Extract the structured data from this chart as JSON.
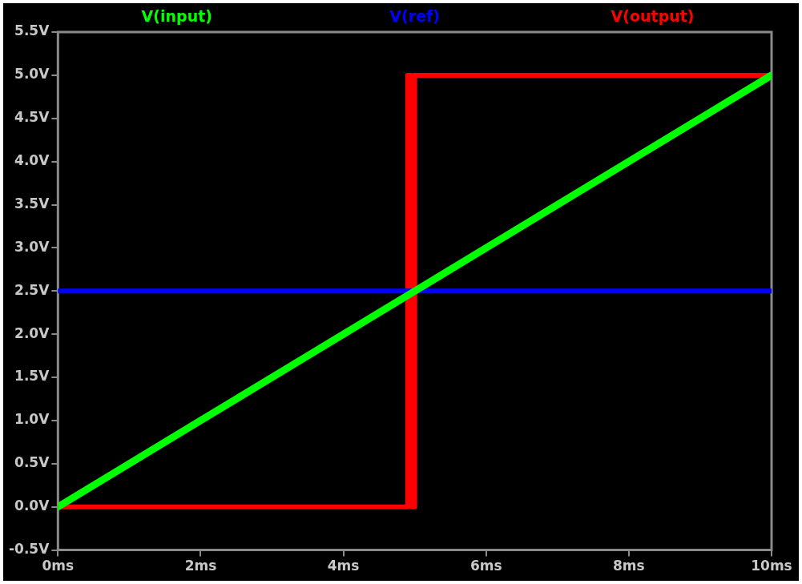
{
  "chart_data": {
    "type": "line",
    "legend": "top",
    "grid": false,
    "marker": "none",
    "line_style": "solid",
    "xlim": [
      0,
      10
    ],
    "xticks": [
      {
        "value": 0,
        "label": "0ms"
      },
      {
        "value": 2,
        "label": "2ms"
      },
      {
        "value": 4,
        "label": "4ms"
      },
      {
        "value": 6,
        "label": "6ms"
      },
      {
        "value": 8,
        "label": "8ms"
      },
      {
        "value": 10,
        "label": "10ms"
      }
    ],
    "ylim": [
      -0.5,
      5.5
    ],
    "yticks": [
      {
        "value": -0.5,
        "label": "-0.5V"
      },
      {
        "value": 0,
        "label": "0.0V"
      },
      {
        "value": 0.5,
        "label": "0.5V"
      },
      {
        "value": 1,
        "label": "1.0V"
      },
      {
        "value": 1.5,
        "label": "1.5V"
      },
      {
        "value": 2,
        "label": "2.0V"
      },
      {
        "value": 2.5,
        "label": "2.5V"
      },
      {
        "value": 3,
        "label": "3.0V"
      },
      {
        "value": 3.5,
        "label": "3.5V"
      },
      {
        "value": 4,
        "label": "4.0V"
      },
      {
        "value": 4.5,
        "label": "4.5V"
      },
      {
        "value": 5,
        "label": "5.0V"
      },
      {
        "value": 5.5,
        "label": "5.5V"
      }
    ],
    "series": [
      {
        "name": "V(input)",
        "color": "#00ff00",
        "x": [
          0,
          10
        ],
        "values": [
          0,
          5
        ]
      },
      {
        "name": "V(ref)",
        "color": "#0000ff",
        "x": [
          0,
          10
        ],
        "values": [
          2.5,
          2.5
        ]
      },
      {
        "name": "V(output)",
        "color": "#ff0000",
        "x": [
          0,
          4.9,
          4.9,
          4.95,
          4.95,
          5,
          5,
          5.05,
          5.05,
          10
        ],
        "values": [
          0,
          0,
          5,
          5,
          0,
          0,
          5,
          5,
          5,
          5
        ]
      }
    ]
  }
}
